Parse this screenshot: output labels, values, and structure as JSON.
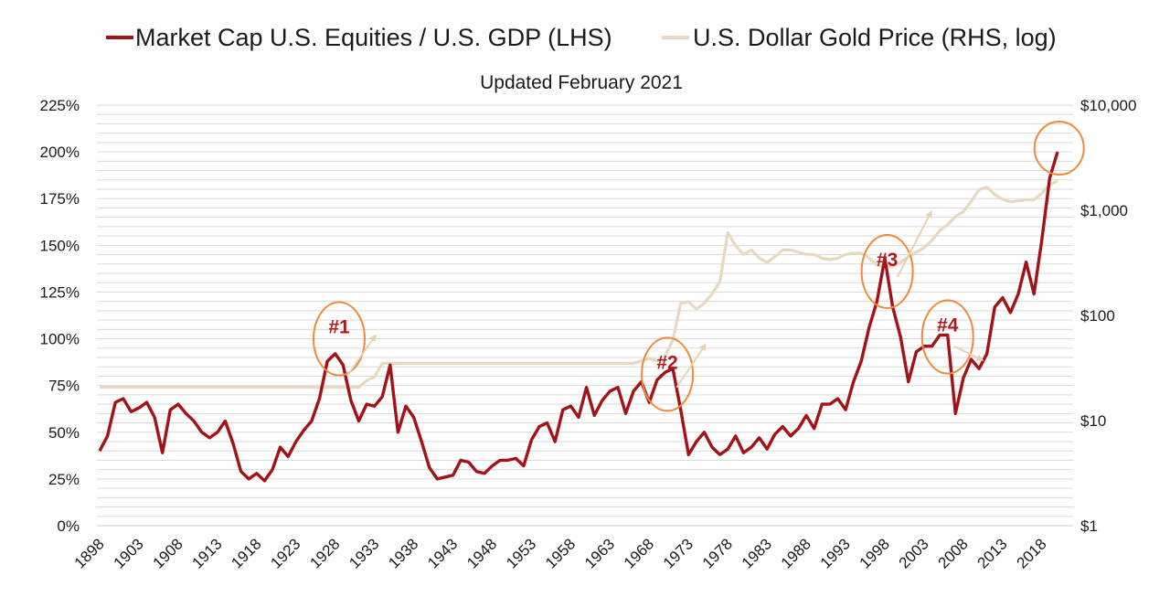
{
  "chart_data": {
    "type": "line",
    "subtitle": "Updated February 2021",
    "legend_position": "top",
    "colors": {
      "market_cap": "#a31216",
      "gold": "#e7d9bf",
      "annotation": "#ef8a3c",
      "annotation_text": "#b0181e",
      "grid": "#dadada"
    },
    "y_left": {
      "ticks": [
        0,
        25,
        50,
        75,
        100,
        125,
        150,
        175,
        200,
        225
      ],
      "tick_labels": [
        "0%",
        "25%",
        "50%",
        "75%",
        "100%",
        "125%",
        "150%",
        "175%",
        "200%",
        "225%"
      ],
      "range": [
        0,
        225
      ]
    },
    "y_right": {
      "scale": "log",
      "ticks": [
        1,
        10,
        100,
        1000,
        10000
      ],
      "tick_labels": [
        "$1",
        "$10",
        "$100",
        "$1,000",
        "$10,000"
      ],
      "range": [
        1,
        10000
      ]
    },
    "x_axis": {
      "range": [
        1898,
        2021
      ],
      "ticks": [
        1898,
        1903,
        1908,
        1913,
        1918,
        1923,
        1928,
        1933,
        1938,
        1943,
        1948,
        1953,
        1958,
        1963,
        1968,
        1973,
        1978,
        1983,
        1988,
        1993,
        1998,
        2003,
        2008,
        2013,
        2018
      ],
      "tick_labels": [
        "1898",
        "1903",
        "1908",
        "1913",
        "1918",
        "1923",
        "1928",
        "1933",
        "1938",
        "1943",
        "1948",
        "1953",
        "1958",
        "1963",
        "1968",
        "1973",
        "1978",
        "1983",
        "1988",
        "1993",
        "1998",
        "2003",
        "2008",
        "2013",
        "2018"
      ]
    },
    "grid": true,
    "series": [
      {
        "name": "Market Cap U.S. Equities / U.S. GDP (LHS)",
        "axis": "left",
        "points": [
          [
            1898,
            40
          ],
          [
            1899,
            48
          ],
          [
            1900,
            66
          ],
          [
            1901,
            68
          ],
          [
            1902,
            61
          ],
          [
            1903,
            63
          ],
          [
            1904,
            66
          ],
          [
            1905,
            58
          ],
          [
            1906,
            39
          ],
          [
            1907,
            62
          ],
          [
            1908,
            65
          ],
          [
            1909,
            60
          ],
          [
            1910,
            56
          ],
          [
            1911,
            50
          ],
          [
            1912,
            47
          ],
          [
            1913,
            50
          ],
          [
            1914,
            56
          ],
          [
            1915,
            44
          ],
          [
            1916,
            29
          ],
          [
            1917,
            25
          ],
          [
            1918,
            28
          ],
          [
            1919,
            24
          ],
          [
            1920,
            30
          ],
          [
            1921,
            42
          ],
          [
            1922,
            37
          ],
          [
            1923,
            45
          ],
          [
            1924,
            51
          ],
          [
            1925,
            56
          ],
          [
            1926,
            68
          ],
          [
            1927,
            88
          ],
          [
            1928,
            92
          ],
          [
            1929,
            86
          ],
          [
            1930,
            67
          ],
          [
            1931,
            56
          ],
          [
            1932,
            65
          ],
          [
            1933,
            64
          ],
          [
            1934,
            69
          ],
          [
            1935,
            86
          ],
          [
            1936,
            50
          ],
          [
            1937,
            64
          ],
          [
            1938,
            58
          ],
          [
            1939,
            45
          ],
          [
            1940,
            31
          ],
          [
            1941,
            25
          ],
          [
            1942,
            26
          ],
          [
            1943,
            27
          ],
          [
            1944,
            35
          ],
          [
            1945,
            34
          ],
          [
            1946,
            29
          ],
          [
            1947,
            28
          ],
          [
            1948,
            32
          ],
          [
            1949,
            35
          ],
          [
            1950,
            35
          ],
          [
            1951,
            36
          ],
          [
            1952,
            32
          ],
          [
            1953,
            46
          ],
          [
            1954,
            53
          ],
          [
            1955,
            55
          ],
          [
            1956,
            45
          ],
          [
            1957,
            62
          ],
          [
            1958,
            64
          ],
          [
            1959,
            58
          ],
          [
            1960,
            74
          ],
          [
            1961,
            59
          ],
          [
            1962,
            67
          ],
          [
            1963,
            72
          ],
          [
            1964,
            74
          ],
          [
            1965,
            60
          ],
          [
            1966,
            72
          ],
          [
            1967,
            77
          ],
          [
            1968,
            66
          ],
          [
            1969,
            78
          ],
          [
            1970,
            82
          ],
          [
            1971,
            84
          ],
          [
            1972,
            62
          ],
          [
            1973,
            38
          ],
          [
            1974,
            45
          ],
          [
            1975,
            50
          ],
          [
            1976,
            42
          ],
          [
            1977,
            38
          ],
          [
            1978,
            41
          ],
          [
            1979,
            48
          ],
          [
            1980,
            39
          ],
          [
            1981,
            42
          ],
          [
            1982,
            47
          ],
          [
            1983,
            41
          ],
          [
            1984,
            49
          ],
          [
            1985,
            53
          ],
          [
            1986,
            48
          ],
          [
            1987,
            52
          ],
          [
            1988,
            59
          ],
          [
            1989,
            52
          ],
          [
            1990,
            65
          ],
          [
            1991,
            65
          ],
          [
            1992,
            68
          ],
          [
            1993,
            62
          ],
          [
            1994,
            77
          ],
          [
            1995,
            88
          ],
          [
            1996,
            106
          ],
          [
            1997,
            120
          ],
          [
            1998,
            143
          ],
          [
            1999,
            117
          ],
          [
            2000,
            101
          ],
          [
            2001,
            77
          ],
          [
            2002,
            93
          ],
          [
            2003,
            96
          ],
          [
            2004,
            96
          ],
          [
            2005,
            102
          ],
          [
            2006,
            102
          ],
          [
            2007,
            60
          ],
          [
            2008,
            79
          ],
          [
            2009,
            89
          ],
          [
            2010,
            84
          ],
          [
            2011,
            92
          ],
          [
            2012,
            117
          ],
          [
            2013,
            122
          ],
          [
            2014,
            114
          ],
          [
            2015,
            124
          ],
          [
            2016,
            141
          ],
          [
            2017,
            124
          ],
          [
            2018,
            153
          ],
          [
            2019,
            186
          ],
          [
            2020,
            200
          ]
        ]
      },
      {
        "name": "U.S. Dollar Gold Price (RHS, log)",
        "axis": "right",
        "points": [
          [
            1898,
            20.67
          ],
          [
            1931,
            20.67
          ],
          [
            1932,
            24
          ],
          [
            1933,
            26
          ],
          [
            1934,
            35
          ],
          [
            1966,
            35
          ],
          [
            1967,
            37
          ],
          [
            1968,
            39
          ],
          [
            1969,
            37
          ],
          [
            1970,
            41
          ],
          [
            1971,
            58
          ],
          [
            1972,
            130
          ],
          [
            1973,
            135
          ],
          [
            1974,
            115
          ],
          [
            1975,
            130
          ],
          [
            1976,
            160
          ],
          [
            1977,
            210
          ],
          [
            1978,
            612
          ],
          [
            1979,
            460
          ],
          [
            1980,
            380
          ],
          [
            1981,
            420
          ],
          [
            1982,
            350
          ],
          [
            1983,
            320
          ],
          [
            1984,
            360
          ],
          [
            1985,
            420
          ],
          [
            1986,
            420
          ],
          [
            1987,
            400
          ],
          [
            1988,
            380
          ],
          [
            1989,
            380
          ],
          [
            1990,
            350
          ],
          [
            1991,
            340
          ],
          [
            1992,
            350
          ],
          [
            1993,
            380
          ],
          [
            1994,
            390
          ],
          [
            1995,
            390
          ],
          [
            1996,
            350
          ],
          [
            1997,
            300
          ],
          [
            1998,
            290
          ],
          [
            1999,
            290
          ],
          [
            2000,
            320
          ],
          [
            2001,
            360
          ],
          [
            2002,
            400
          ],
          [
            2003,
            440
          ],
          [
            2004,
            520
          ],
          [
            2005,
            640
          ],
          [
            2006,
            730
          ],
          [
            2007,
            870
          ],
          [
            2008,
            970
          ],
          [
            2009,
            1220
          ],
          [
            2010,
            1570
          ],
          [
            2011,
            1660
          ],
          [
            2012,
            1410
          ],
          [
            2013,
            1270
          ],
          [
            2014,
            1200
          ],
          [
            2015,
            1230
          ],
          [
            2016,
            1260
          ],
          [
            2017,
            1260
          ],
          [
            2018,
            1450
          ],
          [
            2019,
            1750
          ],
          [
            2020,
            1900
          ]
        ]
      }
    ],
    "annotations": [
      {
        "label": "#1",
        "x": 1928.5,
        "y": 100
      },
      {
        "label": "#2",
        "x": 1970.3,
        "y": 81
      },
      {
        "label": "#3",
        "x": 1998.3,
        "y": 136
      },
      {
        "label": "#4",
        "x": 2006.0,
        "y": 101
      },
      {
        "label": "",
        "x": 2020.2,
        "y": 202
      }
    ]
  }
}
